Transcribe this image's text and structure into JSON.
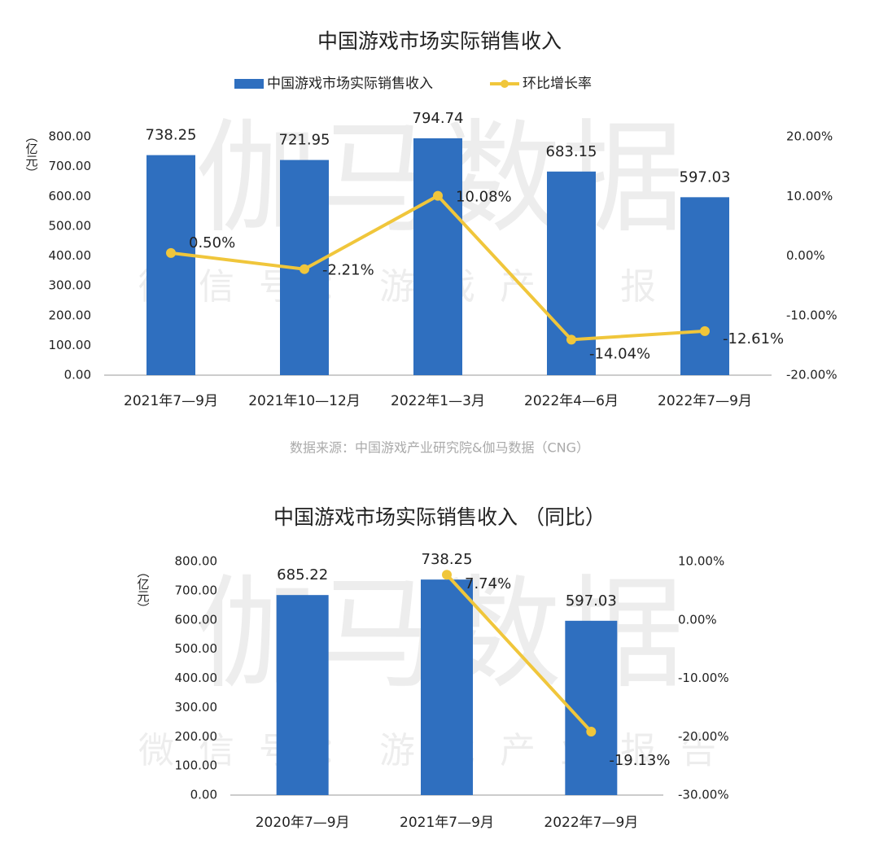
{
  "watermark": {
    "title": "伽马数据",
    "subtitle": "微信号：游戏产业报告"
  },
  "chart_data": [
    {
      "type": "bar_line",
      "title": "中国游戏市场实际销售收入",
      "y_label": "（亿元）",
      "source": "数据来源：中国游戏产业研究院&伽马数据（CNG）",
      "legend": true,
      "categories": [
        "2021年7—9月",
        "2021年10—12月",
        "2022年1—3月",
        "2022年4—6月",
        "2022年7—9月"
      ],
      "series": [
        {
          "name": "中国游戏市场实际销售收入",
          "type": "bar",
          "color": "#2f6fbf",
          "values": [
            738.25,
            721.95,
            794.74,
            683.15,
            597.03
          ]
        },
        {
          "name": "环比增长率",
          "type": "line",
          "axis": "y2",
          "color": "#f0c63b",
          "values": [
            0.5,
            -2.21,
            10.08,
            -14.04,
            -12.61
          ],
          "value_labels": [
            "0.50%",
            "-2.21%",
            "10.08%",
            "-14.04%",
            "-12.61%"
          ]
        }
      ],
      "ylim": [
        0,
        800
      ],
      "yticks": [
        {
          "value": 0,
          "label": "0.00"
        },
        {
          "value": 100,
          "label": "100.00"
        },
        {
          "value": 200,
          "label": "200.00"
        },
        {
          "value": 300,
          "label": "300.00"
        },
        {
          "value": 400,
          "label": "400.00"
        },
        {
          "value": 500,
          "label": "500.00"
        },
        {
          "value": 600,
          "label": "600.00"
        },
        {
          "value": 700,
          "label": "700.00"
        },
        {
          "value": 800,
          "label": "800.00"
        }
      ],
      "y2lim": [
        -20,
        20
      ],
      "y2ticks": [
        {
          "value": -20,
          "label": "-20.00%"
        },
        {
          "value": -10,
          "label": "-10.00%"
        },
        {
          "value": 0,
          "label": "0.00%"
        },
        {
          "value": 10,
          "label": "10.00%"
        },
        {
          "value": 20,
          "label": "20.00%"
        }
      ]
    },
    {
      "type": "bar_line",
      "title": "中国游戏市场实际销售收入 （同比）",
      "y_label": "（亿元）",
      "legend": false,
      "categories": [
        "2020年7—9月",
        "2021年7—9月",
        "2022年7—9月"
      ],
      "series": [
        {
          "type": "bar",
          "color": "#2f6fbf",
          "values": [
            685.22,
            738.25,
            597.03
          ]
        },
        {
          "type": "line",
          "axis": "y2",
          "color": "#f0c63b",
          "values": [
            null,
            7.74,
            -19.13
          ],
          "value_labels": [
            null,
            "7.74%",
            "-19.13%"
          ]
        }
      ],
      "ylim": [
        0,
        800
      ],
      "yticks": [
        {
          "value": 0,
          "label": "0.00"
        },
        {
          "value": 100,
          "label": "100.00"
        },
        {
          "value": 200,
          "label": "200.00"
        },
        {
          "value": 300,
          "label": "300.00"
        },
        {
          "value": 400,
          "label": "400.00"
        },
        {
          "value": 500,
          "label": "500.00"
        },
        {
          "value": 600,
          "label": "600.00"
        },
        {
          "value": 700,
          "label": "700.00"
        },
        {
          "value": 800,
          "label": "800.00"
        }
      ],
      "y2lim": [
        -30,
        10
      ],
      "y2ticks": [
        {
          "value": -30,
          "label": "-30.00%"
        },
        {
          "value": -20,
          "label": "-20.00%"
        },
        {
          "value": -10,
          "label": "-10.00%"
        },
        {
          "value": 0,
          "label": "0.00%"
        },
        {
          "value": 10,
          "label": "10.00%"
        }
      ]
    }
  ]
}
